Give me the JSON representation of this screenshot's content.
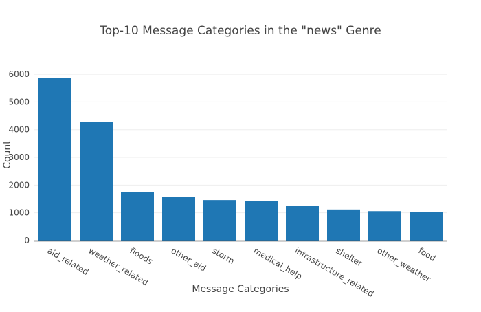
{
  "chart_data": {
    "type": "bar",
    "title": "Top-10 Message Categories in the \"news\" Genre",
    "xlabel": "Message Categories",
    "ylabel": "Count",
    "categories": [
      "aid_related",
      "weather_related",
      "floods",
      "other_aid",
      "storm",
      "medical_help",
      "infrastructure_related",
      "shelter",
      "other_weather",
      "food"
    ],
    "values": [
      5870,
      4290,
      1760,
      1570,
      1460,
      1420,
      1240,
      1120,
      1060,
      1020
    ],
    "ylim": [
      0,
      6200
    ],
    "yticks": [
      0,
      1000,
      2000,
      3000,
      4000,
      5000,
      6000
    ],
    "grid": true,
    "colors": {
      "bar": "#1f77b4",
      "grid": "#eeeeee",
      "axis": "#444444",
      "text": "#444444"
    }
  }
}
